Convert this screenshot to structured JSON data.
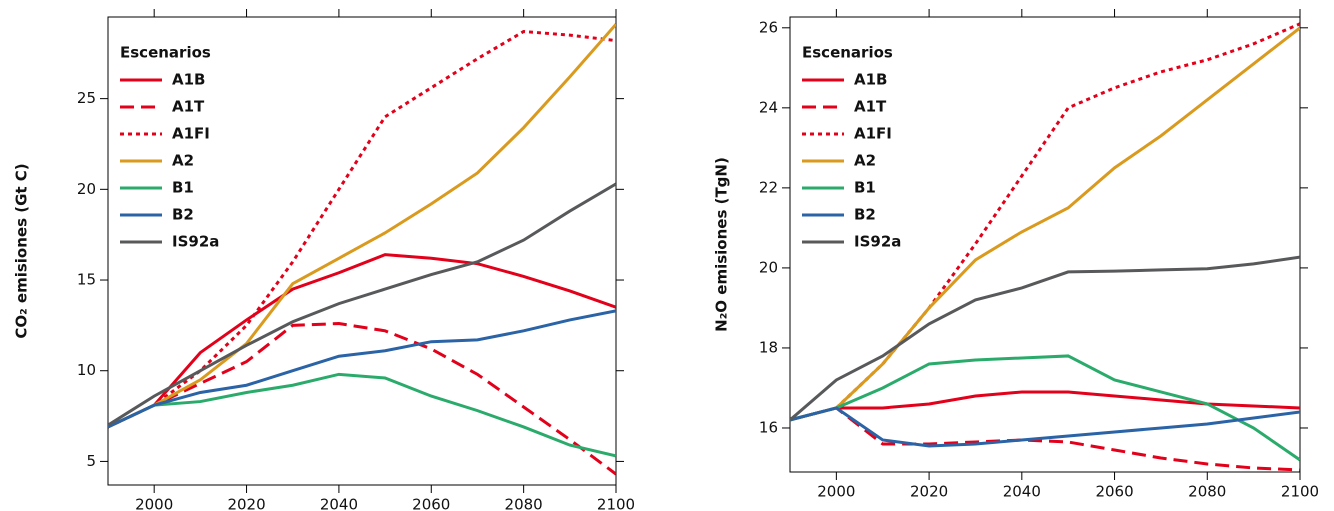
{
  "chart_data": [
    {
      "type": "line",
      "ylabel": "CO₂ emisiones (Gt C)",
      "legend_title": "Escenarios",
      "legend": "top left",
      "x": [
        1990,
        2000,
        2010,
        2020,
        2030,
        2040,
        2050,
        2060,
        2070,
        2080,
        2090,
        2100
      ],
      "xlim": [
        1990,
        2100
      ],
      "xticks": [
        2000,
        2020,
        2040,
        2060,
        2080,
        2100
      ],
      "ylim": [
        3.7,
        29.5
      ],
      "yticks": [
        5,
        10,
        15,
        20,
        25
      ],
      "series": [
        {
          "name": "A1B",
          "color": "#e2001a",
          "dash": "solid",
          "values": [
            6.9,
            8.1,
            11.0,
            12.8,
            14.5,
            15.4,
            16.4,
            16.2,
            15.9,
            15.2,
            14.4,
            13.5
          ]
        },
        {
          "name": "A1T",
          "color": "#e2001a",
          "dash": "dashed",
          "values": [
            6.9,
            8.1,
            9.3,
            10.5,
            12.5,
            12.6,
            12.2,
            11.2,
            9.8,
            8.0,
            6.2,
            4.3
          ]
        },
        {
          "name": "A1FI",
          "color": "#e2001a",
          "dash": "dotted",
          "values": [
            6.9,
            8.1,
            10.0,
            12.5,
            16.0,
            20.0,
            24.0,
            25.6,
            27.2,
            28.7,
            28.5,
            28.2
          ]
        },
        {
          "name": "A2",
          "color": "#d99a1e",
          "dash": "solid",
          "values": [
            6.9,
            8.1,
            9.5,
            11.5,
            14.8,
            16.2,
            17.6,
            19.2,
            20.9,
            23.4,
            26.2,
            29.1
          ]
        },
        {
          "name": "B1",
          "color": "#2bab6b",
          "dash": "solid",
          "values": [
            6.9,
            8.1,
            8.3,
            8.8,
            9.2,
            9.8,
            9.6,
            8.6,
            7.8,
            6.9,
            5.9,
            5.3
          ]
        },
        {
          "name": "B2",
          "color": "#2a63a6",
          "dash": "solid",
          "values": [
            6.9,
            8.1,
            8.8,
            9.2,
            10.0,
            10.8,
            11.1,
            11.6,
            11.7,
            12.2,
            12.8,
            13.3
          ]
        },
        {
          "name": "IS92a",
          "color": "#58595b",
          "dash": "solid",
          "values": [
            7.0,
            8.6,
            10.0,
            11.4,
            12.7,
            13.7,
            14.5,
            15.3,
            16.0,
            17.2,
            18.8,
            20.3
          ]
        }
      ]
    },
    {
      "type": "line",
      "ylabel": "N₂O emisiones (TgN)",
      "legend_title": "Escenarios",
      "legend": "top left",
      "x": [
        1990,
        2000,
        2010,
        2020,
        2030,
        2040,
        2050,
        2060,
        2070,
        2080,
        2090,
        2100
      ],
      "xlim": [
        1990,
        2100
      ],
      "xticks": [
        2000,
        2020,
        2040,
        2060,
        2080,
        2100
      ],
      "ylim": [
        14.9,
        26.27
      ],
      "yticks": [
        16,
        18,
        20,
        22,
        24,
        26
      ],
      "series": [
        {
          "name": "A1B",
          "color": "#e2001a",
          "dash": "solid",
          "values": [
            16.2,
            16.5,
            16.5,
            16.6,
            16.8,
            16.9,
            16.9,
            16.8,
            16.7,
            16.6,
            16.55,
            16.5
          ]
        },
        {
          "name": "A1T",
          "color": "#e2001a",
          "dash": "dashed",
          "values": [
            16.2,
            16.5,
            15.6,
            15.6,
            15.65,
            15.7,
            15.65,
            15.45,
            15.25,
            15.1,
            15.0,
            14.95
          ]
        },
        {
          "name": "A1FI",
          "color": "#e2001a",
          "dash": "dotted",
          "values": [
            16.2,
            16.5,
            17.6,
            19.0,
            20.6,
            22.3,
            24.0,
            24.5,
            24.9,
            25.2,
            25.6,
            26.1
          ]
        },
        {
          "name": "A2",
          "color": "#d99a1e",
          "dash": "solid",
          "values": [
            16.2,
            16.5,
            17.6,
            19.0,
            20.2,
            20.9,
            21.5,
            22.5,
            23.3,
            24.2,
            25.1,
            26.0
          ]
        },
        {
          "name": "B1",
          "color": "#2bab6b",
          "dash": "solid",
          "values": [
            16.2,
            16.5,
            17.0,
            17.6,
            17.7,
            17.75,
            17.8,
            17.2,
            16.9,
            16.6,
            16.0,
            15.2
          ]
        },
        {
          "name": "B2",
          "color": "#2a63a6",
          "dash": "solid",
          "values": [
            16.2,
            16.5,
            15.7,
            15.55,
            15.6,
            15.7,
            15.8,
            15.9,
            16.0,
            16.1,
            16.25,
            16.4
          ]
        },
        {
          "name": "IS92a",
          "color": "#58595b",
          "dash": "solid",
          "values": [
            16.2,
            17.2,
            17.8,
            18.6,
            19.2,
            19.5,
            19.9,
            19.92,
            19.95,
            19.98,
            20.1,
            20.27
          ]
        }
      ]
    }
  ]
}
